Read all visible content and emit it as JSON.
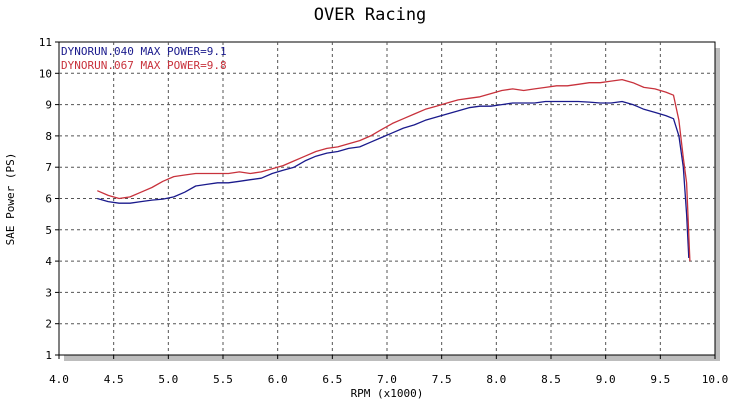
{
  "chart_data": {
    "type": "line",
    "title": "OVER Racing",
    "xlabel": "RPM (x1000)",
    "ylabel": "SAE Power (PS)",
    "xlim": [
      4.0,
      10.0
    ],
    "ylim": [
      1,
      11
    ],
    "x_ticks": [
      "4.0",
      "4.5",
      "5.0",
      "5.5",
      "6.0",
      "6.5",
      "7.0",
      "7.5",
      "8.0",
      "8.5",
      "9.0",
      "9.5",
      "10.0"
    ],
    "y_ticks": [
      "1",
      "2",
      "3",
      "4",
      "5",
      "6",
      "7",
      "8",
      "9",
      "10",
      "11"
    ],
    "grid": true,
    "legend_position": "top-left",
    "series": [
      {
        "name": "DYNORUN.040  MAX POWER=9.1",
        "color": "#1a1a8c",
        "x": [
          4.35,
          4.45,
          4.55,
          4.65,
          4.75,
          4.85,
          4.95,
          5.05,
          5.15,
          5.25,
          5.35,
          5.45,
          5.55,
          5.65,
          5.75,
          5.85,
          5.95,
          6.05,
          6.15,
          6.25,
          6.35,
          6.45,
          6.55,
          6.65,
          6.75,
          6.85,
          6.95,
          7.05,
          7.15,
          7.25,
          7.35,
          7.45,
          7.55,
          7.65,
          7.75,
          7.85,
          7.95,
          8.05,
          8.15,
          8.25,
          8.35,
          8.45,
          8.55,
          8.65,
          8.75,
          8.85,
          8.95,
          9.05,
          9.15,
          9.25,
          9.35,
          9.45,
          9.55,
          9.62,
          9.67,
          9.71,
          9.74,
          9.76
        ],
        "values": [
          6.0,
          5.9,
          5.85,
          5.85,
          5.9,
          5.95,
          5.98,
          6.05,
          6.2,
          6.4,
          6.45,
          6.5,
          6.5,
          6.55,
          6.6,
          6.65,
          6.8,
          6.9,
          7.0,
          7.2,
          7.35,
          7.45,
          7.5,
          7.6,
          7.65,
          7.8,
          7.95,
          8.1,
          8.25,
          8.35,
          8.5,
          8.6,
          8.7,
          8.8,
          8.9,
          8.95,
          8.95,
          9.0,
          9.05,
          9.05,
          9.05,
          9.1,
          9.1,
          9.1,
          9.1,
          9.08,
          9.05,
          9.05,
          9.1,
          9.0,
          8.85,
          8.75,
          8.65,
          8.55,
          8.0,
          7.0,
          5.5,
          4.1
        ]
      },
      {
        "name": "DYNORUN.067  MAX POWER=9.8",
        "color": "#c8323c",
        "x": [
          4.35,
          4.45,
          4.55,
          4.65,
          4.75,
          4.85,
          4.95,
          5.05,
          5.15,
          5.25,
          5.35,
          5.45,
          5.55,
          5.65,
          5.75,
          5.85,
          5.95,
          6.05,
          6.15,
          6.25,
          6.35,
          6.45,
          6.55,
          6.65,
          6.75,
          6.85,
          6.95,
          7.05,
          7.15,
          7.25,
          7.35,
          7.45,
          7.55,
          7.65,
          7.75,
          7.85,
          7.95,
          8.05,
          8.15,
          8.25,
          8.35,
          8.45,
          8.55,
          8.65,
          8.75,
          8.85,
          8.95,
          9.05,
          9.15,
          9.25,
          9.35,
          9.45,
          9.55,
          9.62,
          9.67,
          9.71,
          9.74,
          9.77
        ],
        "values": [
          6.25,
          6.1,
          6.0,
          6.05,
          6.2,
          6.35,
          6.55,
          6.7,
          6.75,
          6.8,
          6.8,
          6.8,
          6.8,
          6.85,
          6.8,
          6.85,
          6.95,
          7.05,
          7.2,
          7.35,
          7.5,
          7.6,
          7.65,
          7.75,
          7.85,
          8.0,
          8.2,
          8.4,
          8.55,
          8.7,
          8.85,
          8.95,
          9.05,
          9.15,
          9.2,
          9.25,
          9.35,
          9.45,
          9.5,
          9.45,
          9.5,
          9.55,
          9.6,
          9.6,
          9.65,
          9.7,
          9.7,
          9.75,
          9.8,
          9.7,
          9.55,
          9.5,
          9.4,
          9.3,
          8.5,
          7.3,
          6.5,
          4.0
        ]
      }
    ]
  }
}
